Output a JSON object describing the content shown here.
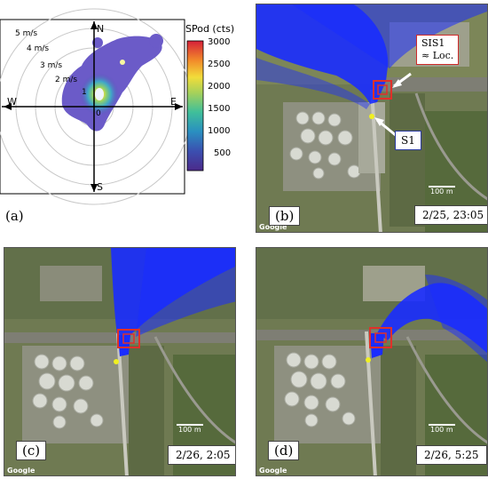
{
  "panel_a": {
    "label": "(a)",
    "colorbar_title": "SPod (cts)",
    "colorbar_ticks": [
      "3000",
      "2500",
      "2000",
      "1500",
      "1000",
      "500"
    ],
    "speed_labels": [
      "5 m/s",
      "4 m/s",
      "3 m/s",
      "2 m/s",
      "1"
    ],
    "center_label": "0",
    "compass": {
      "n": "N",
      "s": "S",
      "e": "E",
      "w": "W"
    }
  },
  "panel_b": {
    "label": "(b)",
    "datetime": "2/25, 23:05",
    "sis_callout_line1": "SIS1",
    "sis_callout_line2": "≈ Loc.",
    "s1_callout": "S1",
    "scale": "100 m",
    "attribution": "Google"
  },
  "panel_c": {
    "label": "(c)",
    "datetime": "2/26, 2:05",
    "scale": "100 m",
    "attribution": "Google"
  },
  "panel_d": {
    "label": "(d)",
    "datetime": "2/26, 5:25",
    "scale": "100 m",
    "attribution": "Google"
  },
  "colors": {
    "plume": "#1a2cff",
    "marker_red": "#e0302a",
    "source_yellow": "#f0f020",
    "callout_border_red": "#d02a2a",
    "callout_border_blue": "#2a3aa0"
  }
}
